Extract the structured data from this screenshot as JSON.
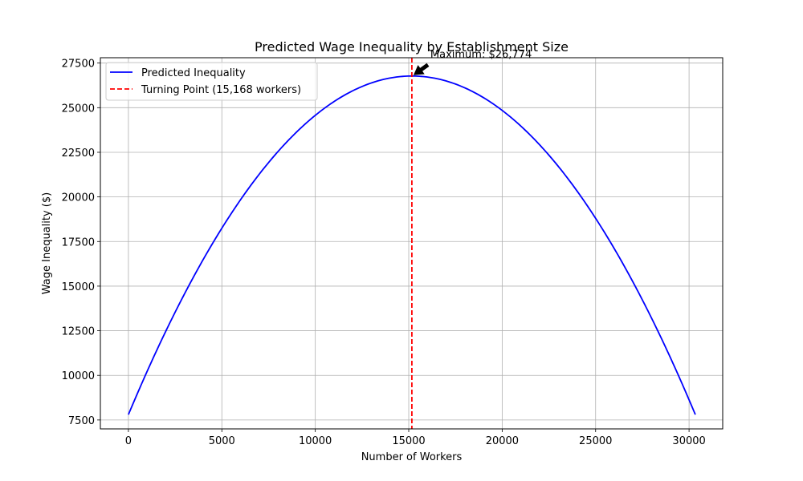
{
  "chart_data": {
    "type": "line",
    "title": "Predicted Wage Inequality by Establishment Size",
    "xlabel": "Number of Workers",
    "ylabel": "Wage Inequality ($)",
    "xlim": [
      -1500,
      31800
    ],
    "ylim": [
      7000,
      27800
    ],
    "xticks": [
      0,
      5000,
      10000,
      15000,
      20000,
      25000,
      30000
    ],
    "yticks": [
      7500,
      10000,
      12500,
      15000,
      17500,
      20000,
      22500,
      25000,
      27500
    ],
    "grid": true,
    "legend_position": "top-left",
    "series": [
      {
        "name": "Predicted Inequality",
        "color": "#0000ff",
        "style": "solid",
        "model": "quadratic",
        "x_range": [
          0,
          30336
        ],
        "vertex_x": 15168,
        "vertex_y": 26774,
        "endpoint_y": 7800
      }
    ],
    "vline": {
      "name": "Turning Point (15,168 workers)",
      "x": 15168,
      "color": "#ff0000",
      "style": "dashed"
    },
    "annotation": {
      "text": "Maximum: $26,774",
      "point_x": 15168,
      "point_y": 26774
    }
  }
}
